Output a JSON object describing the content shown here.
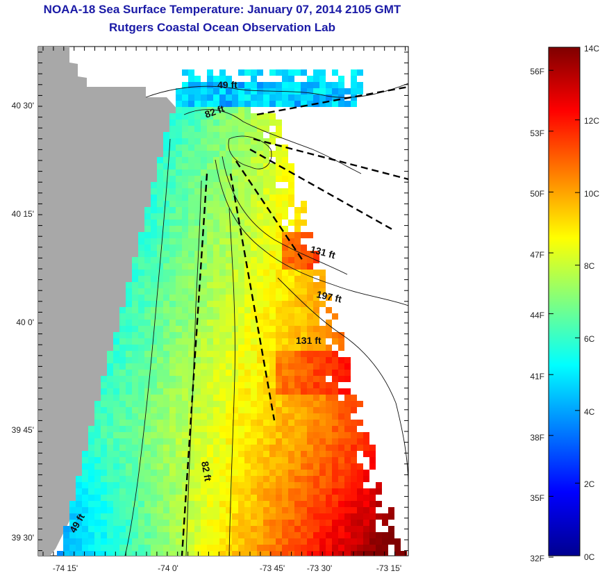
{
  "header": {
    "title": "NOAA-18 Sea Surface Temperature:  January 07, 2014 2105 GMT",
    "subtitle": "Rutgers Coastal Ocean Observation Lab"
  },
  "map": {
    "lat_ticks": [
      "40 30'",
      "40 15'",
      "40 0'",
      "39 45'",
      "39 30'"
    ],
    "lon_ticks": [
      "-74 15'",
      "-74 0'",
      "-73 45'",
      "-73 30'",
      "-73 15'"
    ],
    "contour_labels": [
      "49 ft",
      "82 ft",
      "131 ft",
      "197 ft",
      "131 ft",
      "82 ft",
      "49 ft"
    ],
    "colors": {
      "land": "#a8a8a8",
      "water_bg": "#ffffff",
      "contour": "#111111"
    }
  },
  "colorbar": {
    "fahrenheit_labels": [
      "56F",
      "53F",
      "50F",
      "47F",
      "44F",
      "41F",
      "38F",
      "35F",
      "32F"
    ],
    "celsius_labels": [
      "14C",
      "12C",
      "10C",
      "8C",
      "6C",
      "4C",
      "2C",
      "0C"
    ],
    "colormap": "jet",
    "range_celsius": [
      0,
      14
    ]
  }
}
